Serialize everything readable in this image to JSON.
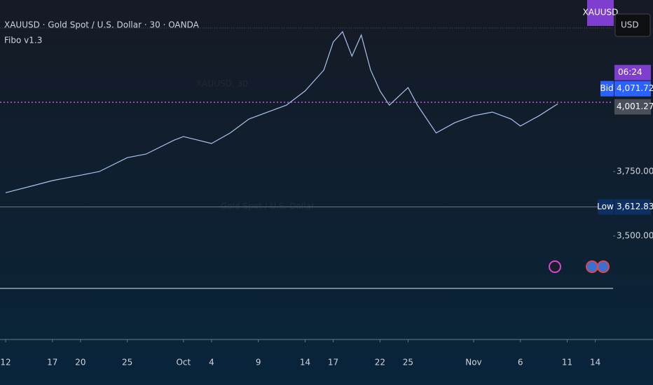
{
  "chart_data": {
    "type": "line",
    "title": "XAUUSD · Gold Spot / U.S. Dollar · 30 · OANDA",
    "subtitle": "Fibo v1.3",
    "watermark_symbol": "XAUUSD, 30",
    "watermark_name": "Gold Spot / U.S. Dollar",
    "symbol_tag": "XAUUSD",
    "currency": "USD",
    "countdown": "06:24",
    "series": [
      {
        "name": "XAUUSD",
        "color": "#a9c4ef",
        "x": [
          0,
          3,
          5,
          8,
          10,
          13,
          15,
          18,
          19,
          22,
          24,
          26,
          28,
          30,
          32,
          34,
          35,
          36,
          37,
          38,
          39,
          40,
          41,
          43,
          44,
          46,
          48,
          50,
          52,
          54,
          55,
          57,
          59
        ],
        "values": [
          3668,
          3696,
          3715,
          3736,
          3750,
          3804,
          3818,
          3872,
          3886,
          3859,
          3900,
          3954,
          3981,
          4008,
          4063,
          4144,
          4253,
          4293,
          4198,
          4280,
          4144,
          4063,
          4008,
          4076,
          4008,
          3900,
          3940,
          3967,
          3981,
          3954,
          3927,
          3967,
          4013
        ]
      }
    ],
    "current_price_line": 4019,
    "bid": {
      "tag": "Bid",
      "value": 4071.72,
      "label": "4,071.720"
    },
    "last": {
      "value": 4001.275,
      "label": "4,001.275"
    },
    "low": {
      "tag": "Low",
      "value": 3612.835,
      "label": "3,612.835"
    },
    "xlim": [
      -0.6,
      64.9
    ],
    "ylim": [
      3302,
      4416
    ],
    "yticks": [
      {
        "value": 3750,
        "label": "3,750.000"
      },
      {
        "value": 3500,
        "label": "3,500.000"
      }
    ],
    "xticks": [
      {
        "value": 0,
        "label": "12"
      },
      {
        "value": 5,
        "label": "17"
      },
      {
        "value": 8,
        "label": "20"
      },
      {
        "value": 13,
        "label": "25"
      },
      {
        "value": 19,
        "label": "Oct"
      },
      {
        "value": 22,
        "label": "4"
      },
      {
        "value": 27,
        "label": "9"
      },
      {
        "value": 32,
        "label": "14"
      },
      {
        "value": 35,
        "label": "17"
      },
      {
        "value": 40,
        "label": "22"
      },
      {
        "value": 43,
        "label": "25"
      },
      {
        "value": 50,
        "label": "Nov"
      },
      {
        "value": 55,
        "label": "6"
      },
      {
        "value": 60,
        "label": "11"
      },
      {
        "value": 63,
        "label": "14"
      }
    ]
  }
}
